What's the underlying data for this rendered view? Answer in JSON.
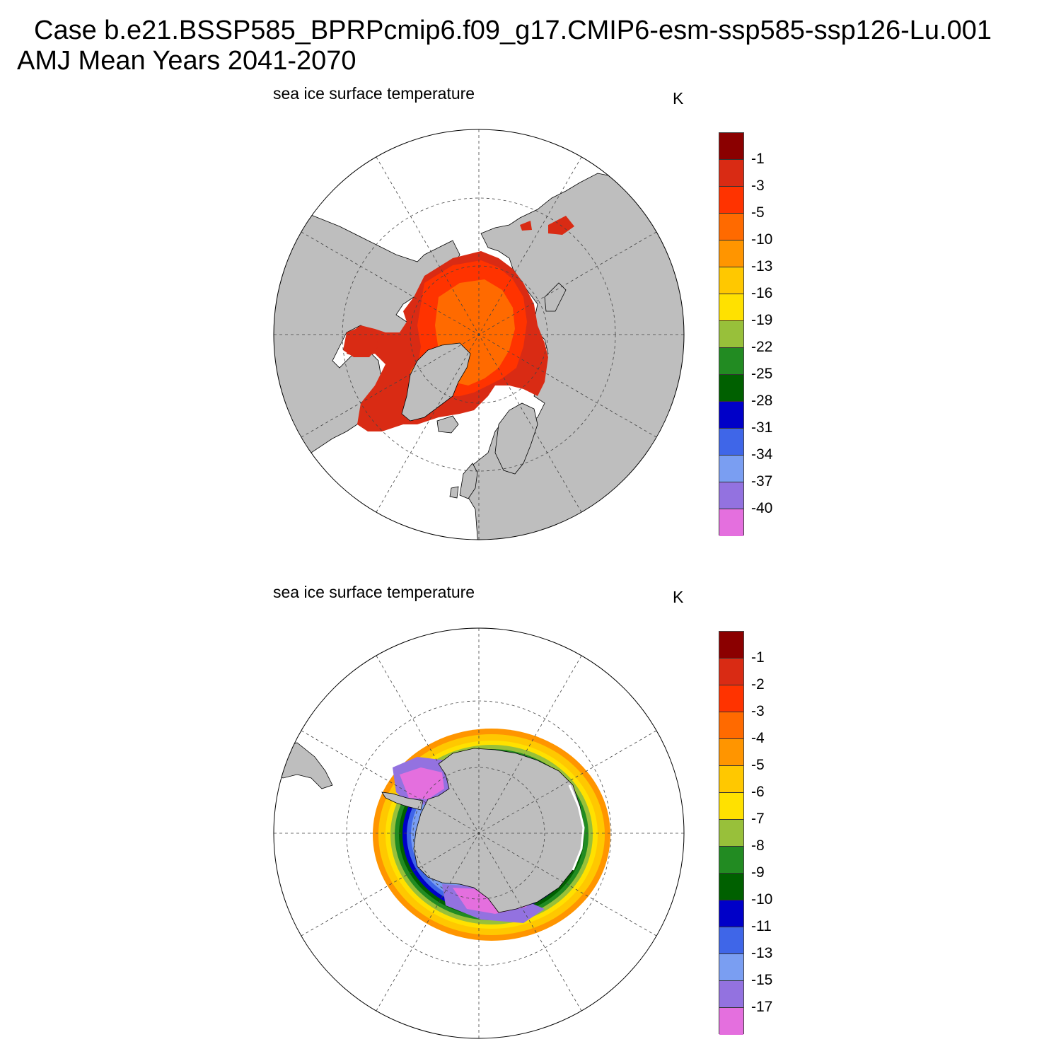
{
  "header": {
    "case_line": "Case b.e21.BSSP585_BPRPcmip6.f09_g17.CMIP6-esm-ssp585-ssp126-Lu.001",
    "period_line": "AMJ Mean   Years 2041-2070"
  },
  "panels": [
    {
      "id": "arctic",
      "title": "sea ice surface temperature",
      "units": "K",
      "colorbar_labels": [
        "-1",
        "-3",
        "-5",
        "-10",
        "-13",
        "-16",
        "-19",
        "-22",
        "-25",
        "-28",
        "-31",
        "-34",
        "-37",
        "-40"
      ]
    },
    {
      "id": "antarctic",
      "title": "sea ice surface temperature",
      "units": "K",
      "colorbar_labels": [
        "-1",
        "-2",
        "-3",
        "-4",
        "-5",
        "-6",
        "-7",
        "-8",
        "-9",
        "-10",
        "-11",
        "-13",
        "-15",
        "-17"
      ]
    }
  ],
  "colors": {
    "palette": [
      "#e46fde",
      "#9372e0",
      "#7a9ef2",
      "#3f66e8",
      "#0000c8",
      "#006000",
      "#228b22",
      "#98c03a",
      "#ffe100",
      "#ffc800",
      "#ff9500",
      "#ff6a00",
      "#ff3300",
      "#d92b14",
      "#8b0000"
    ],
    "land": "#bebebe",
    "ocean": "#ffffff"
  },
  "chart_data": {
    "type": "heatmap",
    "maps": [
      {
        "region": "Northern Hemisphere polar stereographic",
        "variable": "sea ice surface temperature",
        "units": "K",
        "levels": [
          -40,
          -37,
          -34,
          -31,
          -28,
          -25,
          -22,
          -19,
          -16,
          -13,
          -10,
          -5,
          -3,
          -1
        ],
        "dominant_values": "central Arctic -10 to -5; Canadian Archipelago, Hudson Bay, Baffin Bay, Barents and Bering seas -3 to -1"
      },
      {
        "region": "Southern Hemisphere polar stereographic",
        "variable": "sea ice surface temperature",
        "units": "K",
        "levels": [
          -17,
          -15,
          -13,
          -11,
          -10,
          -9,
          -8,
          -7,
          -6,
          -5,
          -4,
          -3,
          -2,
          -1
        ],
        "dominant_values": "outer ice edge -6 to -4; inner pack -11 to -9; Weddell and Ross seas below -17"
      }
    ]
  }
}
